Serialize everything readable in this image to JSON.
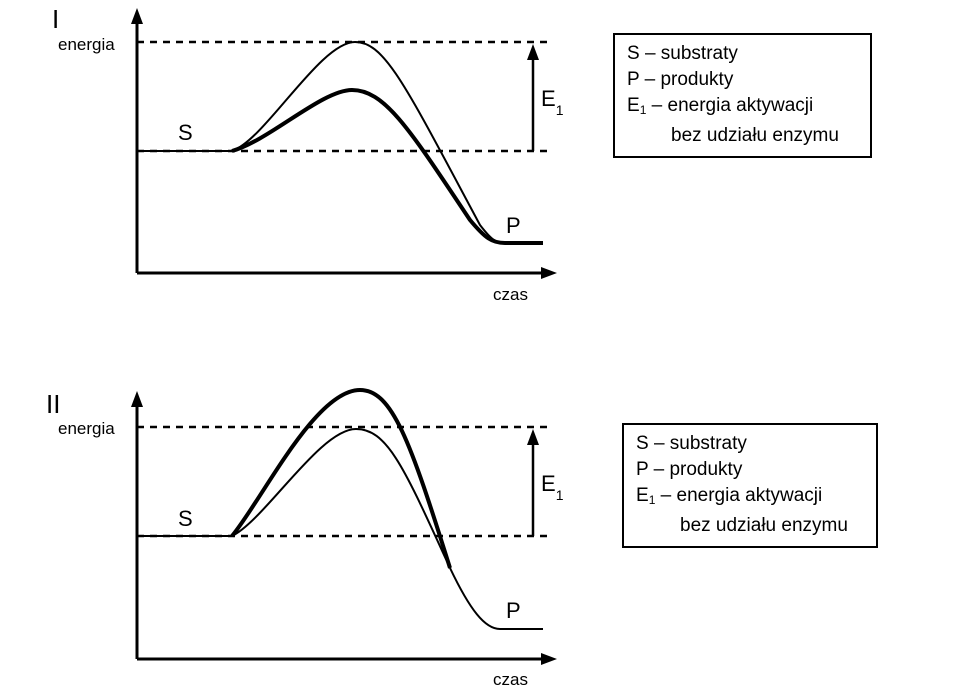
{
  "diagrams": [
    {
      "roman": "I",
      "y_axis_label": "energia",
      "x_axis_label": "czas",
      "substrate_label": "S",
      "product_label": "P",
      "activation_label": "E",
      "activation_sub": "1",
      "legend": {
        "s": "S – substraty",
        "p": "P – produkty",
        "e_main": "E",
        "e_sub": "1",
        "e_rest": " – energia aktywacji",
        "e_cont": "bez udziału enzymu"
      }
    },
    {
      "roman": "II",
      "y_axis_label": "energia",
      "x_axis_label": "czas",
      "substrate_label": "S",
      "product_label": "P",
      "activation_label": "E",
      "activation_sub": "1",
      "legend": {
        "s": "S – substraty",
        "p": "P – produkty",
        "e_main": "E",
        "e_sub": "1",
        "e_rest": " – energia aktywacji",
        "e_cont": "bez udziału enzymu"
      }
    }
  ],
  "colors": {
    "ink": "#000000",
    "background": "#ffffff"
  }
}
